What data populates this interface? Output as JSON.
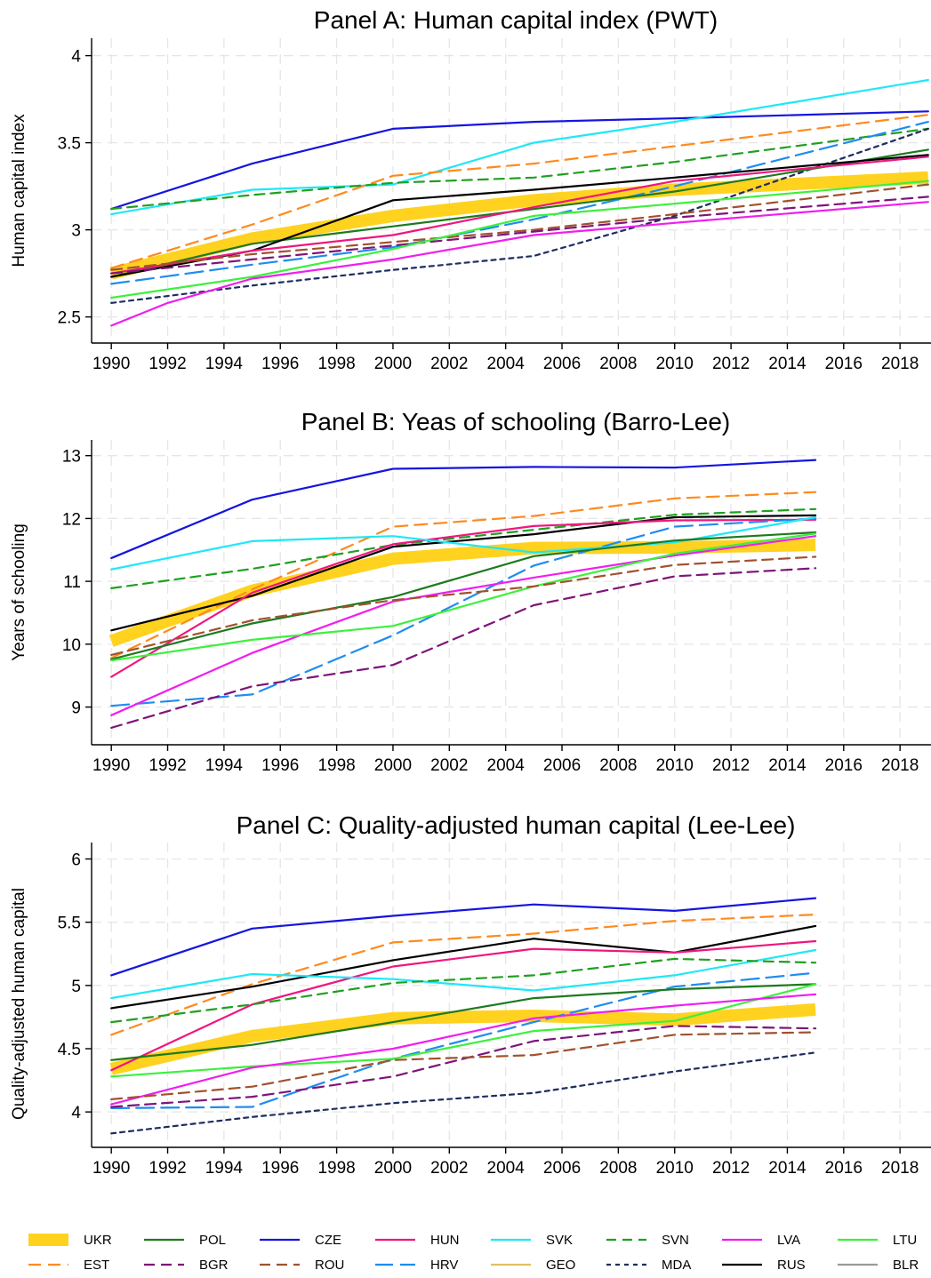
{
  "legend": [
    {
      "name": "UKR",
      "color": "#FFD21F",
      "width": 14,
      "dash": ""
    },
    {
      "name": "POL",
      "color": "#1E7A1E",
      "width": 2.2,
      "dash": ""
    },
    {
      "name": "CZE",
      "color": "#1515E0",
      "width": 2.2,
      "dash": ""
    },
    {
      "name": "HUN",
      "color": "#F0167E",
      "width": 2.2,
      "dash": ""
    },
    {
      "name": "SVK",
      "color": "#1EE8F5",
      "width": 2.2,
      "dash": ""
    },
    {
      "name": "SVN",
      "color": "#1FA01F",
      "width": 2.2,
      "dash": "11,7"
    },
    {
      "name": "LVA",
      "color": "#F01EF0",
      "width": 2.2,
      "dash": ""
    },
    {
      "name": "LTU",
      "color": "#3CF03C",
      "width": 2.2,
      "dash": ""
    },
    {
      "name": "EST",
      "color": "#FF8A1E",
      "width": 2.2,
      "dash": "14,8"
    },
    {
      "name": "BGR",
      "color": "#7E1579",
      "width": 2.2,
      "dash": "12,7"
    },
    {
      "name": "ROU",
      "color": "#A0522D",
      "width": 2.2,
      "dash": "12,7"
    },
    {
      "name": "HRV",
      "color": "#1E8CF0",
      "width": 2.2,
      "dash": "20,8"
    },
    {
      "name": "GEO",
      "color": "#E0C060",
      "width": 2.2,
      "dash": ""
    },
    {
      "name": "MDA",
      "color": "#1E2E60",
      "width": 2.2,
      "dash": "5,5"
    },
    {
      "name": "RUS",
      "color": "#000000",
      "width": 2.2,
      "dash": ""
    },
    {
      "name": "BLR",
      "color": "#9A9A9A",
      "width": 2.2,
      "dash": ""
    }
  ],
  "chart_data": [
    {
      "type": "line",
      "title": "Panel A: Human capital index (PWT)",
      "ylabel": "Human capital index",
      "xlabel": "",
      "xlim": [
        1989.3,
        2019.1
      ],
      "ylim": [
        2.35,
        4.1
      ],
      "xticks": [
        "1990",
        "1992",
        "1994",
        "1996",
        "1998",
        "2000",
        "2002",
        "2004",
        "2006",
        "2008",
        "2010",
        "2012",
        "2014",
        "2016",
        "2018"
      ],
      "yticks": [
        "2.5",
        "3",
        "3.5",
        "4"
      ],
      "grid": true,
      "series": [
        {
          "name": "CZE",
          "x": [
            1990,
            1995,
            2000,
            2005,
            2010,
            2019
          ],
          "values": [
            3.12,
            3.38,
            3.58,
            3.62,
            3.64,
            3.68
          ]
        },
        {
          "name": "SVK",
          "x": [
            1990,
            1995,
            2000,
            2005,
            2010,
            2019
          ],
          "values": [
            3.09,
            3.23,
            3.26,
            3.5,
            3.62,
            3.86
          ]
        },
        {
          "name": "EST",
          "x": [
            1990,
            1995,
            2000,
            2005,
            2010,
            2019
          ],
          "values": [
            2.78,
            3.03,
            3.31,
            3.38,
            3.48,
            3.66
          ]
        },
        {
          "name": "SVN",
          "x": [
            1990,
            1995,
            2000,
            2005,
            2010,
            2019
          ],
          "values": [
            3.12,
            3.2,
            3.27,
            3.3,
            3.39,
            3.58
          ]
        },
        {
          "name": "MDA",
          "x": [
            1990,
            1995,
            2000,
            2005,
            2010,
            2019
          ],
          "values": [
            2.58,
            2.68,
            2.77,
            2.85,
            3.08,
            3.58
          ]
        },
        {
          "name": "HRV",
          "x": [
            1990,
            1995,
            2000,
            2005,
            2010,
            2019
          ],
          "values": [
            2.69,
            2.8,
            2.9,
            3.06,
            3.25,
            3.62
          ]
        },
        {
          "name": "POL",
          "x": [
            1990,
            1995,
            2000,
            2005,
            2010,
            2019
          ],
          "values": [
            2.73,
            2.92,
            3.02,
            3.12,
            3.22,
            3.46
          ]
        },
        {
          "name": "RUS",
          "x": [
            1990,
            1995,
            2000,
            2005,
            2010,
            2019
          ],
          "values": [
            2.73,
            2.88,
            3.17,
            3.23,
            3.3,
            3.43
          ]
        },
        {
          "name": "HUN",
          "x": [
            1990,
            1995,
            2000,
            2005,
            2010,
            2019
          ],
          "values": [
            2.75,
            2.88,
            2.97,
            3.13,
            3.28,
            3.42
          ]
        },
        {
          "name": "UKR",
          "x": [
            1990,
            1995,
            2000,
            2005,
            2010,
            2019
          ],
          "values": [
            2.75,
            2.95,
            3.08,
            3.17,
            3.23,
            3.3
          ]
        },
        {
          "name": "ROU",
          "x": [
            1990,
            1995,
            2000,
            2005,
            2010,
            2019
          ],
          "values": [
            2.77,
            2.86,
            2.93,
            3.0,
            3.09,
            3.26
          ]
        },
        {
          "name": "BGR",
          "x": [
            1990,
            1995,
            2000,
            2005,
            2010,
            2019
          ],
          "values": [
            2.75,
            2.83,
            2.91,
            2.99,
            3.07,
            3.19
          ]
        },
        {
          "name": "LTU",
          "x": [
            1990,
            1995,
            2000,
            2005,
            2010,
            2019
          ],
          "values": [
            2.61,
            2.73,
            2.89,
            3.08,
            3.15,
            3.28
          ]
        },
        {
          "name": "LVA",
          "x": [
            1990,
            1992,
            1995,
            2000,
            2005,
            2010,
            2019
          ],
          "values": [
            2.45,
            2.58,
            2.72,
            2.83,
            2.97,
            3.04,
            3.16
          ]
        }
      ]
    },
    {
      "type": "line",
      "title": "Panel B: Yeas of schooling (Barro-Lee)",
      "ylabel": "Years of schooling",
      "xlabel": "",
      "xlim": [
        1989.3,
        2019.1
      ],
      "ylim": [
        8.4,
        13.25
      ],
      "xticks": [
        "1990",
        "1992",
        "1994",
        "1996",
        "1998",
        "2000",
        "2002",
        "2004",
        "2006",
        "2008",
        "2010",
        "2012",
        "2014",
        "2016",
        "2018"
      ],
      "yticks": [
        "9",
        "10",
        "11",
        "12",
        "13"
      ],
      "grid": true,
      "series": [
        {
          "name": "CZE",
          "x": [
            1990,
            1995,
            2000,
            2005,
            2010,
            2015
          ],
          "values": [
            11.37,
            12.3,
            12.79,
            12.82,
            12.81,
            12.93
          ]
        },
        {
          "name": "EST",
          "x": [
            1990,
            1995,
            2000,
            2005,
            2010,
            2015
          ],
          "values": [
            9.78,
            10.87,
            11.87,
            12.04,
            12.32,
            12.42
          ]
        },
        {
          "name": "SVN",
          "x": [
            1990,
            1995,
            2000,
            2005,
            2010,
            2015
          ],
          "values": [
            10.89,
            11.2,
            11.58,
            11.82,
            12.06,
            12.15
          ]
        },
        {
          "name": "RUS",
          "x": [
            1990,
            1995,
            2000,
            2005,
            2010,
            2015
          ],
          "values": [
            10.22,
            10.77,
            11.55,
            11.75,
            12.02,
            12.05
          ]
        },
        {
          "name": "HUN",
          "x": [
            1990,
            1995,
            2000,
            2005,
            2010,
            2015
          ],
          "values": [
            9.48,
            10.82,
            11.59,
            11.88,
            11.97,
            11.98
          ]
        },
        {
          "name": "HRV",
          "x": [
            1990,
            1995,
            2000,
            2005,
            2010,
            2015
          ],
          "values": [
            9.02,
            9.2,
            10.14,
            11.25,
            11.87,
            12.0
          ]
        },
        {
          "name": "SVK",
          "x": [
            1990,
            1995,
            2000,
            2005,
            2010,
            2015
          ],
          "values": [
            11.19,
            11.64,
            11.72,
            11.46,
            11.62,
            12.02
          ]
        },
        {
          "name": "POL",
          "x": [
            1990,
            1995,
            2000,
            2005,
            2010,
            2015
          ],
          "values": [
            9.76,
            10.33,
            10.75,
            11.4,
            11.65,
            11.78
          ]
        },
        {
          "name": "LVA",
          "x": [
            1990,
            1995,
            2000,
            2005,
            2010,
            2015
          ],
          "values": [
            8.87,
            9.86,
            10.68,
            11.06,
            11.41,
            11.72
          ]
        },
        {
          "name": "LTU",
          "x": [
            1990,
            1995,
            2000,
            2005,
            2010,
            2015
          ],
          "values": [
            9.74,
            10.07,
            10.29,
            10.92,
            11.44,
            11.76
          ]
        },
        {
          "name": "UKR",
          "x": [
            1990,
            1995,
            2000,
            2005,
            2010,
            2015
          ],
          "values": [
            10.05,
            10.85,
            11.36,
            11.53,
            11.54,
            11.58
          ]
        },
        {
          "name": "ROU",
          "x": [
            1990,
            1995,
            2000,
            2005,
            2010,
            2015
          ],
          "values": [
            9.83,
            10.38,
            10.7,
            10.92,
            11.26,
            11.39
          ]
        },
        {
          "name": "BGR",
          "x": [
            1990,
            1995,
            2000,
            2005,
            2010,
            2015
          ],
          "values": [
            8.67,
            9.33,
            9.67,
            10.62,
            11.08,
            11.21
          ]
        }
      ]
    },
    {
      "type": "line",
      "title": "Panel C: Quality-adjusted human capital (Lee-Lee)",
      "ylabel": "Quality-adjusted human capital",
      "xlabel": "",
      "xlim": [
        1989.3,
        2019.1
      ],
      "ylim": [
        3.72,
        6.13
      ],
      "xticks": [
        "1990",
        "1992",
        "1994",
        "1996",
        "1998",
        "2000",
        "2002",
        "2004",
        "2006",
        "2008",
        "2010",
        "2012",
        "2014",
        "2016",
        "2018"
      ],
      "yticks": [
        "4",
        "4.5",
        "5",
        "5.5",
        "6"
      ],
      "grid": true,
      "series": [
        {
          "name": "CZE",
          "x": [
            1990,
            1995,
            2000,
            2005,
            2010,
            2015
          ],
          "values": [
            5.08,
            5.45,
            5.55,
            5.64,
            5.59,
            5.69
          ]
        },
        {
          "name": "EST",
          "x": [
            1990,
            1995,
            2000,
            2005,
            2010,
            2015
          ],
          "values": [
            4.61,
            5.01,
            5.34,
            5.41,
            5.51,
            5.56
          ]
        },
        {
          "name": "RUS",
          "x": [
            1990,
            1995,
            2000,
            2005,
            2010,
            2015
          ],
          "values": [
            4.82,
            4.99,
            5.2,
            5.37,
            5.26,
            5.47
          ]
        },
        {
          "name": "HUN",
          "x": [
            1990,
            1995,
            2000,
            2005,
            2010,
            2015
          ],
          "values": [
            4.33,
            4.85,
            5.15,
            5.29,
            5.26,
            5.35
          ]
        },
        {
          "name": "SVK",
          "x": [
            1990,
            1995,
            2000,
            2005,
            2010,
            2015
          ],
          "values": [
            4.9,
            5.09,
            5.05,
            4.96,
            5.08,
            5.28
          ]
        },
        {
          "name": "SVN",
          "x": [
            1990,
            1995,
            2000,
            2005,
            2010,
            2015
          ],
          "values": [
            4.71,
            4.85,
            5.02,
            5.08,
            5.21,
            5.18
          ]
        },
        {
          "name": "HRV",
          "x": [
            1990,
            1995,
            2000,
            2005,
            2010,
            2015
          ],
          "values": [
            4.03,
            4.04,
            4.42,
            4.71,
            4.99,
            5.1
          ]
        },
        {
          "name": "POL",
          "x": [
            1990,
            1995,
            2000,
            2005,
            2010,
            2015
          ],
          "values": [
            4.41,
            4.53,
            4.71,
            4.9,
            4.97,
            5.01
          ]
        },
        {
          "name": "LTU",
          "x": [
            1990,
            1995,
            2000,
            2005,
            2010,
            2015
          ],
          "values": [
            4.28,
            4.36,
            4.42,
            4.64,
            4.72,
            5.01
          ]
        },
        {
          "name": "LVA",
          "x": [
            1990,
            1995,
            2000,
            2005,
            2010,
            2015
          ],
          "values": [
            4.06,
            4.35,
            4.5,
            4.74,
            4.84,
            4.93
          ]
        },
        {
          "name": "UKR",
          "x": [
            1990,
            1995,
            2000,
            2005,
            2010,
            2015
          ],
          "values": [
            4.34,
            4.6,
            4.74,
            4.76,
            4.73,
            4.81
          ]
        },
        {
          "name": "BGR",
          "x": [
            1990,
            1995,
            2000,
            2005,
            2010,
            2015
          ],
          "values": [
            4.04,
            4.12,
            4.28,
            4.56,
            4.68,
            4.66
          ]
        },
        {
          "name": "ROU",
          "x": [
            1990,
            1995,
            2000,
            2005,
            2010,
            2015
          ],
          "values": [
            4.1,
            4.2,
            4.41,
            4.45,
            4.61,
            4.63
          ]
        },
        {
          "name": "MDA",
          "x": [
            1990,
            1995,
            2000,
            2005,
            2010,
            2015
          ],
          "values": [
            3.83,
            3.96,
            4.07,
            4.15,
            4.32,
            4.47
          ]
        }
      ]
    }
  ]
}
